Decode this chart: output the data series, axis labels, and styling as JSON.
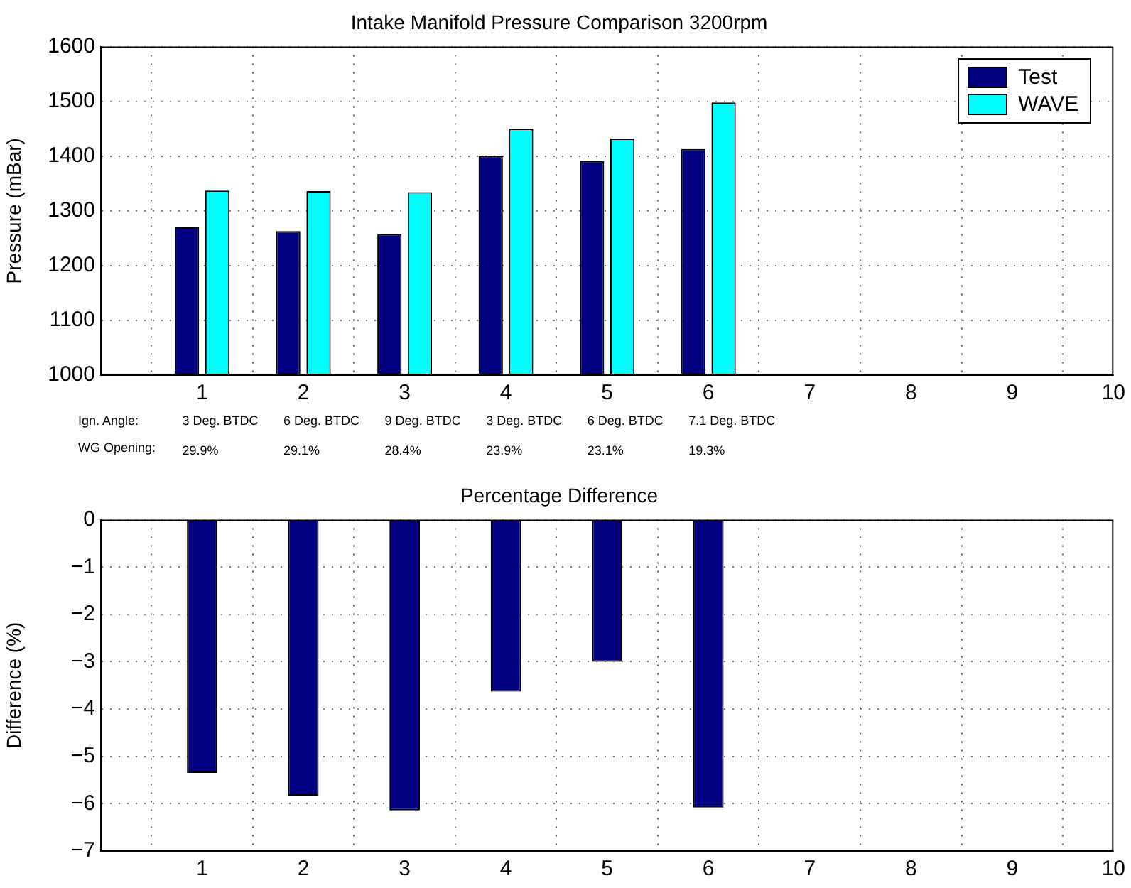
{
  "chart_data": [
    {
      "type": "bar",
      "title": "Intake Manifold Pressure Comparison 3200rpm",
      "ylabel": "Pressure (mBar)",
      "x": [
        1,
        2,
        3,
        4,
        5,
        6
      ],
      "xlim": [
        0,
        10
      ],
      "xticks": [
        1,
        2,
        3,
        4,
        5,
        6,
        7,
        8,
        9,
        10
      ],
      "ylim": [
        1000,
        1600
      ],
      "yticks": [
        1000,
        1100,
        1200,
        1300,
        1400,
        1500,
        1600
      ],
      "grid": true,
      "legend": "top right",
      "series": [
        {
          "name": "Test",
          "color": "#000080",
          "values": [
            1270,
            1263,
            1258,
            1400,
            1391,
            1413
          ]
        },
        {
          "name": "WAVE",
          "color": "#00ffff",
          "values": [
            1337,
            1336,
            1334,
            1450,
            1432,
            1498
          ]
        }
      ],
      "annotations": [
        "Ign. Angle:",
        {
          "text": "3 Deg. BTDC",
          "x": 1
        },
        {
          "text": "6 Deg. BTDC",
          "x": 2
        },
        {
          "text": "9 Deg. BTDC",
          "x": 3
        },
        {
          "text": "3 Deg. BTDC",
          "x": 4
        },
        {
          "text": "6 Deg. BTDC",
          "x": 5
        },
        {
          "text": "7.1 Deg. BTDC",
          "x": 6
        },
        "WG Opening:",
        {
          "text": "29.9%",
          "x": 1
        },
        {
          "text": "29.1%",
          "x": 2
        },
        {
          "text": "28.4%",
          "x": 3
        },
        {
          "text": "23.9%",
          "x": 4
        },
        {
          "text": "23.1%",
          "x": 5
        },
        {
          "text": "19.3%",
          "x": 6
        }
      ]
    },
    {
      "type": "bar",
      "title": "Percentage Difference",
      "ylabel": "Difference (%)",
      "x": [
        1,
        2,
        3,
        4,
        5,
        6
      ],
      "xlim": [
        0,
        10
      ],
      "xticks": [
        1,
        2,
        3,
        4,
        5,
        6,
        7,
        8,
        9,
        10
      ],
      "ylim": [
        -7,
        0
      ],
      "yticks": [
        -7,
        -6,
        -5,
        -4,
        -3,
        -2,
        -1,
        0
      ],
      "grid": true,
      "color": "#000080",
      "values": [
        -5.35,
        -5.83,
        -6.14,
        -3.63,
        -3.0,
        -6.08
      ]
    }
  ]
}
